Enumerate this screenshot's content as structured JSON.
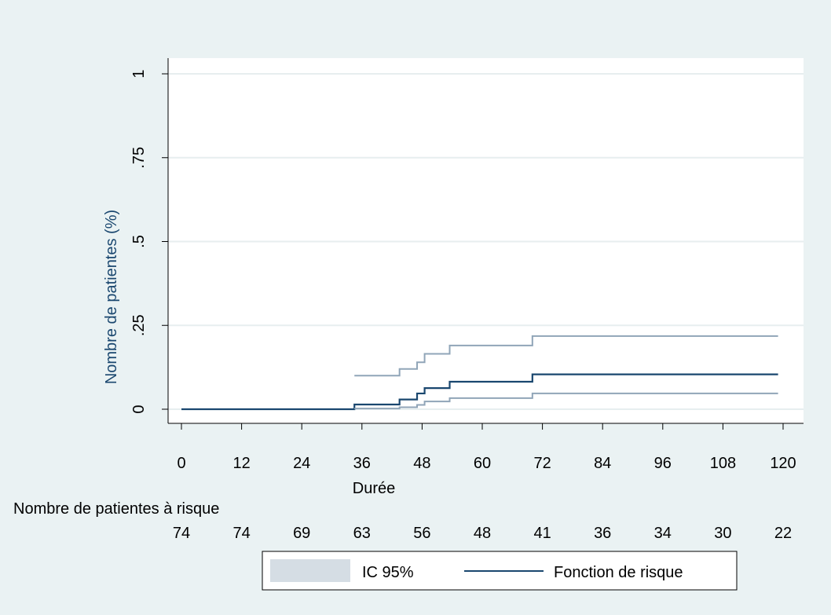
{
  "chart_data": {
    "type": "line",
    "title": "",
    "xlabel": "Durée",
    "ylabel": "Nombre de patientes (%)",
    "xlim": [
      0,
      120
    ],
    "ylim": [
      0,
      1
    ],
    "x_ticks": [
      0,
      12,
      24,
      36,
      48,
      60,
      72,
      84,
      96,
      108,
      120
    ],
    "x_tick_labels": [
      "0",
      "12",
      "24",
      "36",
      "48",
      "60",
      "72",
      "84",
      "96",
      "108",
      "120"
    ],
    "y_ticks": [
      0,
      0.25,
      0.5,
      0.75,
      1
    ],
    "y_tick_labels": [
      "0",
      ".25",
      ".5",
      ".75",
      "1"
    ],
    "grid": true,
    "legend_position": "bottom",
    "series": [
      {
        "name": "Fonction de risque",
        "color": "#1a476f",
        "role": "estimate",
        "x": [
          0,
          34.5,
          43.5,
          47,
          48.5,
          53.5,
          70,
          119
        ],
        "y": [
          0,
          0.014,
          0.029,
          0.047,
          0.063,
          0.082,
          0.104,
          0.104
        ]
      },
      {
        "name": "IC 95%",
        "color": "#90a5b8",
        "role": "ci_upper",
        "x": [
          34.5,
          43.5,
          47,
          48.5,
          53.5,
          70,
          119
        ],
        "y": [
          0.1,
          0.12,
          0.14,
          0.165,
          0.19,
          0.218,
          0.218
        ]
      },
      {
        "name": "IC 95%",
        "color": "#90a5b8",
        "role": "ci_lower",
        "x": [
          34.5,
          43.5,
          47,
          48.5,
          53.5,
          70,
          119
        ],
        "y": [
          0.002,
          0.006,
          0.013,
          0.023,
          0.033,
          0.047,
          0.047
        ]
      }
    ],
    "risk_table": {
      "label": "Nombre de patientes à risque",
      "times": [
        0,
        12,
        24,
        36,
        48,
        60,
        72,
        84,
        96,
        108,
        120
      ],
      "counts": [
        "74",
        "74",
        "69",
        "63",
        "56",
        "48",
        "41",
        "36",
        "34",
        "30",
        "22"
      ]
    },
    "legend": {
      "items": [
        {
          "label": "IC 95%",
          "kind": "band",
          "color": "#d5dde4"
        },
        {
          "label": "Fonction de risque",
          "kind": "line",
          "color": "#1a476f"
        }
      ]
    },
    "colors": {
      "background": "#eaf2f3",
      "plot_background": "#ffffff",
      "grid": "#e7eeef",
      "axis": "#000000",
      "ylabel_color": "#1a476f"
    }
  }
}
